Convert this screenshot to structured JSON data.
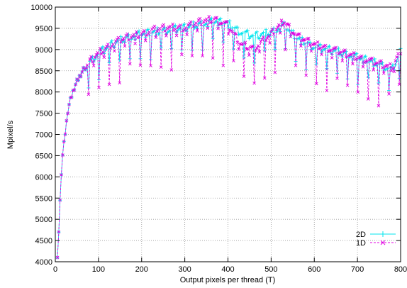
{
  "chart_data": {
    "type": "line",
    "title": "",
    "xlabel": "Output pixels per thread (T)",
    "ylabel": "Mpixel/s",
    "xlim": [
      0,
      800
    ],
    "ylim": [
      4000,
      10000
    ],
    "xticks": [
      0,
      100,
      200,
      300,
      400,
      500,
      600,
      700,
      800
    ],
    "yticks": [
      4000,
      4500,
      5000,
      5500,
      6000,
      6500,
      7000,
      7500,
      8000,
      8500,
      9000,
      9500,
      10000
    ],
    "grid": true,
    "legend_position": "bottom-right",
    "series": [
      {
        "name": "2D",
        "color": "#00e5ee",
        "marker": "plus",
        "line_style": "solid",
        "envelope": {
          "x": [
            5,
            15,
            30,
            45,
            60,
            80,
            100,
            130,
            160,
            200,
            230,
            260,
            300,
            340,
            370,
            400,
            430,
            460,
            500,
            530,
            560,
            600,
            650,
            700,
            750,
            780,
            790,
            800
          ],
          "y": [
            4100,
            6400,
            7700,
            8200,
            8500,
            8800,
            9000,
            9200,
            9350,
            9450,
            9500,
            9550,
            9600,
            9700,
            9750,
            9700,
            9500,
            9400,
            9500,
            9650,
            9350,
            9150,
            9050,
            8900,
            8750,
            8600,
            8800,
            9050
          ]
        },
        "dips_every": 8,
        "dip_depth": 600
      },
      {
        "name": "1D",
        "color": "#e000e0",
        "marker": "x",
        "line_style": "dashed",
        "envelope": {
          "x": [
            5,
            15,
            30,
            45,
            60,
            80,
            100,
            130,
            160,
            200,
            230,
            260,
            300,
            340,
            370,
            400,
            430,
            460,
            500,
            530,
            560,
            600,
            650,
            700,
            750,
            780,
            790,
            800
          ],
          "y": [
            4100,
            6400,
            7700,
            8200,
            8500,
            8800,
            9000,
            9200,
            9350,
            9450,
            9550,
            9600,
            9600,
            9750,
            9800,
            9650,
            9200,
            9100,
            9450,
            9750,
            9400,
            9200,
            9050,
            8900,
            8750,
            8650,
            8850,
            9050
          ]
        },
        "dips_every": 8,
        "dip_depth": 900
      }
    ]
  }
}
